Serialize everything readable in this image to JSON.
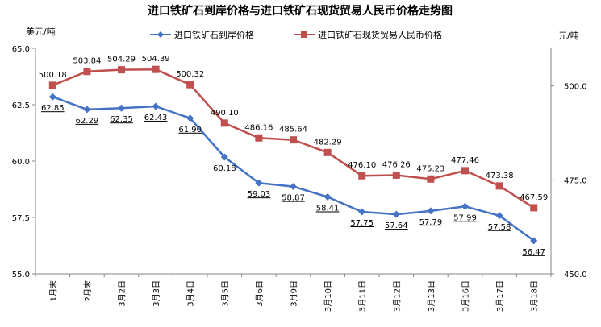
{
  "chart_data": {
    "type": "line",
    "title": "进口铁矿石到岸价格与进口铁矿石现货贸易人民币价格走势图",
    "categories": [
      "1月末",
      "2月末",
      "3月2日",
      "3月3日",
      "3月4日",
      "3月5日",
      "3月6日",
      "3月9日",
      "3月10日",
      "3月11日",
      "3月12日",
      "3月13日",
      "3月16日",
      "3月17日",
      "3月18日"
    ],
    "y_left": {
      "label": "美元/吨",
      "ylim": [
        55.0,
        65.0
      ],
      "ticks": [
        "55.0",
        "57.5",
        "60.0",
        "62.5",
        "65.0"
      ]
    },
    "y_right": {
      "label": "元/吨",
      "ylim": [
        450.0,
        510.0
      ],
      "ticks": [
        "450.0",
        "475.0",
        "500.0"
      ]
    },
    "grid": false,
    "legend_position": "top",
    "series": [
      {
        "name": "进口铁矿石到岸价格",
        "axis": "left",
        "color": "#4472C4",
        "marker": "diamond",
        "values": [
          62.85,
          62.29,
          62.35,
          62.43,
          61.9,
          60.18,
          59.03,
          58.87,
          58.41,
          57.75,
          57.64,
          57.79,
          57.99,
          57.58,
          56.47
        ],
        "labels": [
          "62.85",
          "62.29",
          "62.35",
          "62.43",
          "61.90",
          "60.18",
          "59.03",
          "58.87",
          "58.41",
          "57.75",
          "57.64",
          "57.79",
          "57.99",
          "57.58",
          "56.47"
        ]
      },
      {
        "name": "进口铁矿石现货贸易人民币价格",
        "axis": "right",
        "color": "#C0504D",
        "marker": "square",
        "values": [
          500.18,
          503.84,
          504.29,
          504.39,
          500.32,
          490.1,
          486.16,
          485.64,
          482.29,
          476.1,
          476.26,
          475.23,
          477.46,
          473.38,
          467.59
        ],
        "labels": [
          "500.18",
          "503.84",
          "504.29",
          "504.39",
          "500.32",
          "490.10",
          "486.16",
          "485.64",
          "482.29",
          "476.10",
          "476.26",
          "475.23",
          "477.46",
          "473.38",
          "467.59"
        ]
      }
    ]
  }
}
